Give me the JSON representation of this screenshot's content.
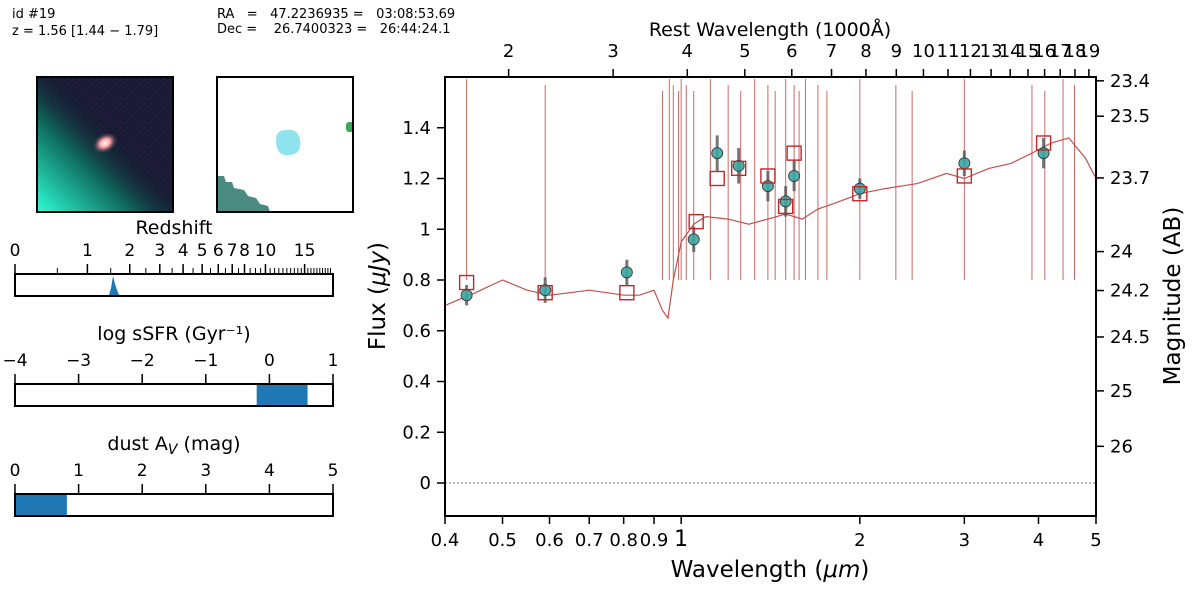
{
  "header": {
    "id_line": "id #19",
    "z_line": "z = 1.56 [1.44 − 1.79]",
    "ra_line": "RA   =   47.2236935 =   03:08:53.69",
    "dec_line": "Dec =    26.7400323 =   26:44:24.1"
  },
  "panels": {
    "redshift": {
      "title": "Redshift",
      "ticks": [
        "0",
        "1",
        "2",
        "3",
        "4",
        "5",
        "6",
        "7",
        "8",
        "10",
        "15"
      ],
      "pdf_peak": 1.56
    },
    "ssfr": {
      "title": "log sSFR (Gyr⁻¹)",
      "ticks": [
        "−4",
        "−3",
        "−2",
        "−1",
        "0",
        "1"
      ],
      "range": [
        -0.2,
        0.6
      ]
    },
    "dust": {
      "title": "dust A",
      "title_sub": "V",
      "title_tail": " (mag)",
      "ticks": [
        "0",
        "1",
        "2",
        "3",
        "4",
        "5"
      ],
      "range": [
        0.0,
        0.8
      ]
    }
  },
  "colors": {
    "model": "#c0504d",
    "observed": "#3aaaa5",
    "model_phot": "#c0282a",
    "bar": "#1f77b4"
  },
  "chart_data": {
    "type": "scatter",
    "xlabel_main": "Wavelength (",
    "xlabel_unit": "μm",
    "xlabel_tail": ")",
    "ylabel_main": "Flux (",
    "ylabel_unit": "μJy",
    "ylabel_tail": ")",
    "top_label": "Rest Wavelength (1000Å)",
    "right_label": "Magnitude (AB)",
    "xscale": "log",
    "xlim": [
      0.4,
      5.0
    ],
    "ylim": [
      -0.13,
      1.6
    ],
    "x_ticks": [
      0.4,
      0.5,
      0.6,
      0.7,
      0.8,
      0.9,
      1,
      2,
      3,
      4,
      5
    ],
    "x_tick_labels": [
      "0.4",
      "0.5",
      "0.6",
      "0.7",
      "0.8",
      "0.9",
      "1",
      "2",
      "3",
      "4",
      "5"
    ],
    "y_ticks": [
      0,
      0.2,
      0.4,
      0.6,
      0.8,
      1,
      1.2,
      1.4
    ],
    "y_tick_labels": [
      "0",
      "0.2",
      "0.4",
      "0.6",
      "0.8",
      "1",
      "1.2",
      "1.4"
    ],
    "top_ticks": [
      2,
      3,
      4,
      5,
      6,
      7,
      8,
      9,
      10,
      11,
      12,
      13,
      14,
      15,
      16,
      17,
      18,
      19
    ],
    "top_tick_labels": [
      "2",
      "3",
      "4",
      "5",
      "6",
      "7",
      "8",
      "9",
      "10",
      "11",
      "12",
      "13",
      "14",
      "15",
      "16",
      "17",
      "18",
      "19"
    ],
    "mag_ticks": [
      23.4,
      23.5,
      23.7,
      24,
      24.2,
      24.5,
      25,
      26
    ],
    "mag_tick_labels": [
      "23.4",
      "23.5",
      "23.7",
      "24",
      "24.2",
      "24.5",
      "25",
      "26"
    ],
    "observed": {
      "x": [
        0.435,
        0.59,
        0.81,
        1.05,
        1.15,
        1.25,
        1.4,
        1.5,
        1.55,
        2.0,
        3.0,
        4.08
      ],
      "y": [
        0.74,
        0.76,
        0.83,
        0.96,
        1.3,
        1.25,
        1.17,
        1.11,
        1.21,
        1.16,
        1.26,
        1.3
      ],
      "err": [
        0.04,
        0.05,
        0.05,
        0.05,
        0.07,
        0.07,
        0.06,
        0.06,
        0.06,
        0.04,
        0.05,
        0.06
      ]
    },
    "model_phot": {
      "x": [
        0.435,
        0.59,
        0.81,
        1.06,
        1.15,
        1.25,
        1.4,
        1.5,
        1.55,
        2.0,
        3.0,
        4.08
      ],
      "y": [
        0.79,
        0.75,
        0.75,
        1.03,
        1.2,
        1.24,
        1.21,
        1.09,
        1.3,
        1.14,
        1.21,
        1.34
      ]
    },
    "model_spectrum": {
      "x": [
        0.4,
        0.45,
        0.5,
        0.55,
        0.6,
        0.65,
        0.7,
        0.75,
        0.8,
        0.85,
        0.9,
        0.93,
        0.95,
        0.97,
        1.0,
        1.05,
        1.1,
        1.2,
        1.3,
        1.4,
        1.5,
        1.6,
        1.7,
        1.8,
        1.9,
        2.0,
        2.2,
        2.5,
        2.8,
        3.0,
        3.3,
        3.6,
        3.9,
        4.2,
        4.5,
        4.8,
        5.0
      ],
      "y": [
        0.7,
        0.75,
        0.8,
        0.76,
        0.74,
        0.75,
        0.76,
        0.75,
        0.74,
        0.74,
        0.76,
        0.68,
        0.65,
        0.8,
        0.95,
        1.02,
        1.05,
        1.04,
        1.02,
        1.04,
        1.06,
        1.04,
        1.08,
        1.1,
        1.12,
        1.14,
        1.16,
        1.18,
        1.22,
        1.2,
        1.24,
        1.26,
        1.3,
        1.34,
        1.36,
        1.28,
        1.2
      ]
    }
  }
}
